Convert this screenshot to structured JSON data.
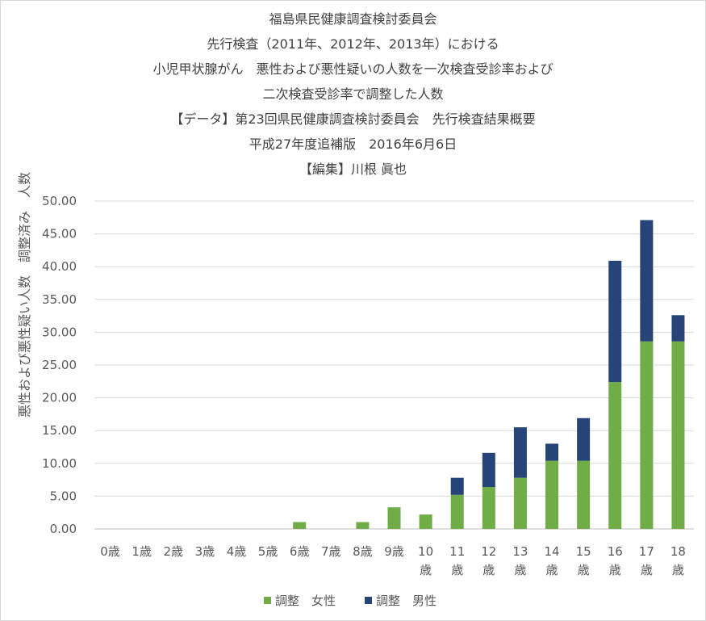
{
  "chart_data": {
    "type": "bar",
    "stacked": true,
    "title_lines": [
      "福島県民健康調査検討委員会",
      "先行検査（2011年、2012年、2013年）における",
      "小児甲状腺がん　悪性および悪性疑いの人数を一次検査受診率および",
      "二次検査受診率で調整した人数",
      "【データ】第23回県民健康調査検討委員会　先行検査結果概要",
      "平成27年度追補版　2016年6月6日",
      "【編集】川根 眞也"
    ],
    "ylabel": "悪性および悪性疑い人数　調整済み　人数",
    "ylim": [
      0,
      50
    ],
    "ytick_values": [
      0,
      5,
      10,
      15,
      20,
      25,
      30,
      35,
      40,
      45,
      50
    ],
    "ytick_labels": [
      "0.00",
      "5.00",
      "10.00",
      "15.00",
      "20.00",
      "25.00",
      "30.00",
      "35.00",
      "40.00",
      "45.00",
      "50.00"
    ],
    "categories": [
      [
        "0歳"
      ],
      [
        "1歳"
      ],
      [
        "2歳"
      ],
      [
        "3歳"
      ],
      [
        "4歳"
      ],
      [
        "5歳"
      ],
      [
        "6歳"
      ],
      [
        "7歳"
      ],
      [
        "8歳"
      ],
      [
        "9歳"
      ],
      [
        "10",
        "歳"
      ],
      [
        "11",
        "歳"
      ],
      [
        "12",
        "歳"
      ],
      [
        "13",
        "歳"
      ],
      [
        "14",
        "歳"
      ],
      [
        "15",
        "歳"
      ],
      [
        "16",
        "歳"
      ],
      [
        "17",
        "歳"
      ],
      [
        "18",
        "歳"
      ]
    ],
    "series": [
      {
        "name": "調整　女性",
        "color": "#70ad47",
        "values": [
          0,
          0,
          0,
          0,
          0,
          0,
          1.05,
          0,
          1.05,
          3.3,
          2.2,
          5.2,
          6.4,
          7.8,
          10.4,
          10.4,
          22.4,
          28.6,
          28.6
        ]
      },
      {
        "name": "調整　男性",
        "color": "#264478",
        "values": [
          0,
          0,
          0,
          0,
          0,
          0,
          0,
          0,
          0,
          0,
          0,
          2.6,
          5.2,
          7.7,
          2.6,
          6.5,
          18.5,
          18.5,
          4.0
        ]
      }
    ],
    "grid": true,
    "legend_position": "bottom"
  }
}
